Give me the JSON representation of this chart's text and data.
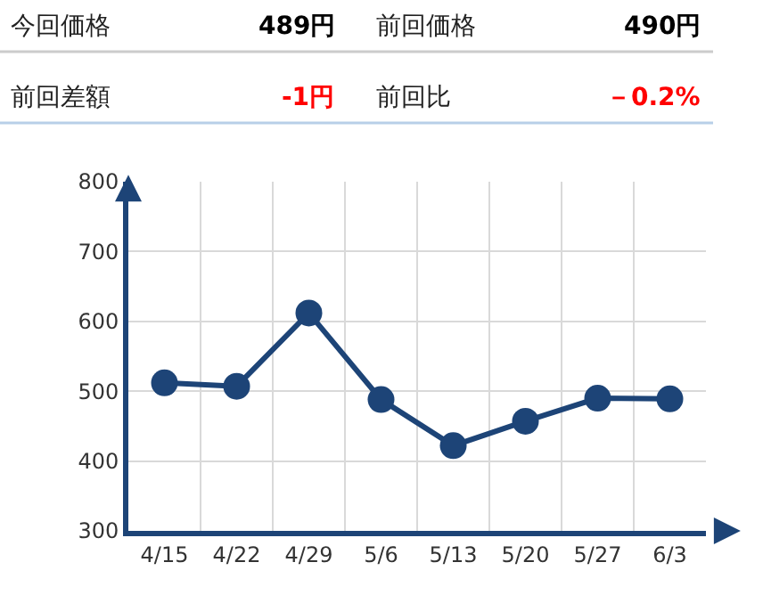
{
  "chart_data": [
    {
      "type": "other",
      "categories": [
        "今回価格",
        "前回価格",
        "前回差額",
        "前回比"
      ],
      "value_labels": [
        "489円",
        "490円",
        "-1円",
        "－0.2%"
      ],
      "colors": [
        "#000000",
        "#000000",
        "#ff0000",
        "#ff0000"
      ]
    },
    {
      "type": "line",
      "categories": [
        "4/15",
        "4/22",
        "4/29",
        "5/6",
        "5/13",
        "5/20",
        "5/27",
        "6/3"
      ],
      "series": [
        {
          "color": "#1d4477",
          "values": [
            512,
            507,
            612,
            488,
            422,
            457,
            490,
            489
          ]
        }
      ],
      "ylim": [
        300,
        800
      ],
      "yticks": [
        300,
        400,
        500,
        600,
        700,
        800
      ],
      "grid": true,
      "marker": "circle",
      "line_style": "solid"
    }
  ]
}
